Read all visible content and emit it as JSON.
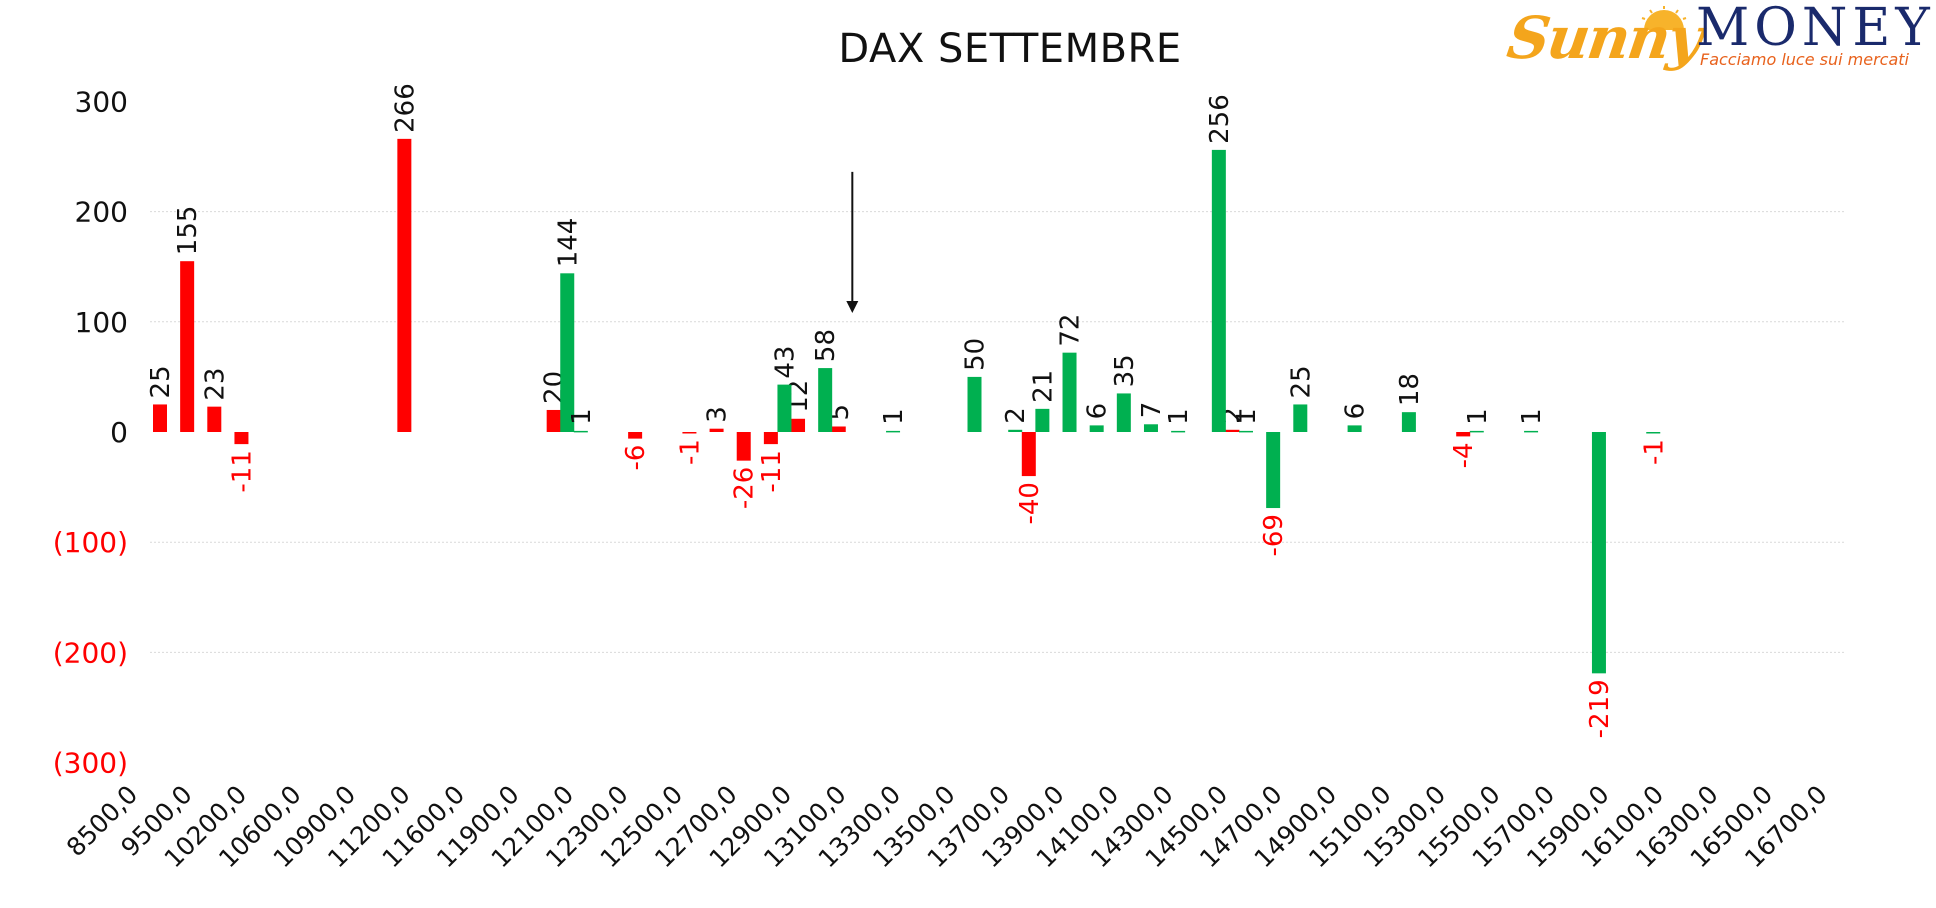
{
  "chart_data": {
    "type": "bar",
    "title": "DAX SETTEMBRE",
    "xlabel": "",
    "ylabel": "",
    "ylim": [
      -300,
      300
    ],
    "y_ticks": [
      300,
      200,
      100,
      0,
      -100,
      -200,
      -300
    ],
    "y_tick_labels": [
      "300",
      "200",
      "100",
      "0",
      "(100)",
      "(200)",
      "(300)"
    ],
    "y_tick_colors": [
      "#111111",
      "#111111",
      "#111111",
      "#111111",
      "#ff0000",
      "#ff0000",
      "#ff0000"
    ],
    "x_tick_labels": [
      "8500,0",
      "9500,0",
      "10200,0",
      "10600,0",
      "10900,0",
      "11200,0",
      "11600,0",
      "11900,0",
      "12100,0",
      "12300,0",
      "12500,0",
      "12700,0",
      "12900,0",
      "13100,0",
      "13300,0",
      "13500,0",
      "13700,0",
      "13900,0",
      "14100,0",
      "14300,0",
      "14500,0",
      "14700,0",
      "14900,0",
      "15100,0",
      "15300,0",
      "15500,0",
      "15700,0",
      "15900,0",
      "16100,0",
      "16300,0",
      "16500,0",
      "16700,0"
    ],
    "grid": true,
    "legend": "none",
    "colors": {
      "red": "#ff0000",
      "green": "#00b050",
      "negative_label": "#ff0000",
      "positive_label": "#111111",
      "grid": "#d9d9d9"
    },
    "series": [
      {
        "color": "red",
        "points": [
          {
            "x": 0.0,
            "value": 25,
            "label": "25"
          },
          {
            "x": 1.0,
            "value": 155,
            "label": "155"
          },
          {
            "x": 2.0,
            "value": 23,
            "label": "23"
          },
          {
            "x": 3.0,
            "value": -11,
            "label": "-11"
          },
          {
            "x": 9.0,
            "value": 266,
            "label": "266"
          },
          {
            "x": 14.5,
            "value": 20,
            "label": "20"
          },
          {
            "x": 17.5,
            "value": -6,
            "label": "-6"
          },
          {
            "x": 19.5,
            "value": -1,
            "label": "-1"
          },
          {
            "x": 20.5,
            "value": 3,
            "label": "3"
          },
          {
            "x": 21.5,
            "value": -26,
            "label": "-26"
          },
          {
            "x": 22.5,
            "value": -11,
            "label": "-11"
          },
          {
            "x": 23.5,
            "value": 12,
            "label": "12"
          },
          {
            "x": 25.0,
            "value": 5,
            "label": "5"
          },
          {
            "x": 32.0,
            "value": -40,
            "label": "-40"
          },
          {
            "x": 39.5,
            "value": 2,
            "label": "2"
          },
          {
            "x": 48.0,
            "value": -4,
            "label": "-4"
          }
        ]
      },
      {
        "color": "green",
        "points": [
          {
            "x": 15.0,
            "value": 144,
            "label": "144"
          },
          {
            "x": 15.5,
            "value": 1,
            "label": "1"
          },
          {
            "x": 23.0,
            "value": 43,
            "label": "43"
          },
          {
            "x": 24.5,
            "value": 58,
            "label": "58"
          },
          {
            "x": 27.0,
            "value": 1,
            "label": "1"
          },
          {
            "x": 30.0,
            "value": 50,
            "label": "50"
          },
          {
            "x": 31.5,
            "value": 2,
            "label": "2"
          },
          {
            "x": 32.5,
            "value": 21,
            "label": "21"
          },
          {
            "x": 33.5,
            "value": 72,
            "label": "72"
          },
          {
            "x": 34.5,
            "value": 6,
            "label": "6"
          },
          {
            "x": 35.5,
            "value": 35,
            "label": "35"
          },
          {
            "x": 36.5,
            "value": 7,
            "label": "7"
          },
          {
            "x": 37.5,
            "value": 1,
            "label": "1"
          },
          {
            "x": 39.0,
            "value": 256,
            "label": "256"
          },
          {
            "x": 40.0,
            "value": 1,
            "label": "1"
          },
          {
            "x": 41.0,
            "value": -69,
            "label": "-69"
          },
          {
            "x": 42.0,
            "value": 25,
            "label": "25"
          },
          {
            "x": 44.0,
            "value": 6,
            "label": "6"
          },
          {
            "x": 46.0,
            "value": 18,
            "label": "18"
          },
          {
            "x": 48.5,
            "value": 1,
            "label": "1"
          },
          {
            "x": 50.5,
            "value": 1,
            "label": "1"
          },
          {
            "x": 53.0,
            "value": -219,
            "label": "-219"
          },
          {
            "x": 55.0,
            "value": -1,
            "label": "-1"
          }
        ]
      }
    ],
    "annotation": {
      "type": "arrow",
      "x": 25.5,
      "from_value": 236,
      "to_value": 108
    }
  },
  "logo": {
    "brand_script": "Sunny",
    "brand_word": "MONEY",
    "tagline": "Facciamo luce sui mercati"
  }
}
